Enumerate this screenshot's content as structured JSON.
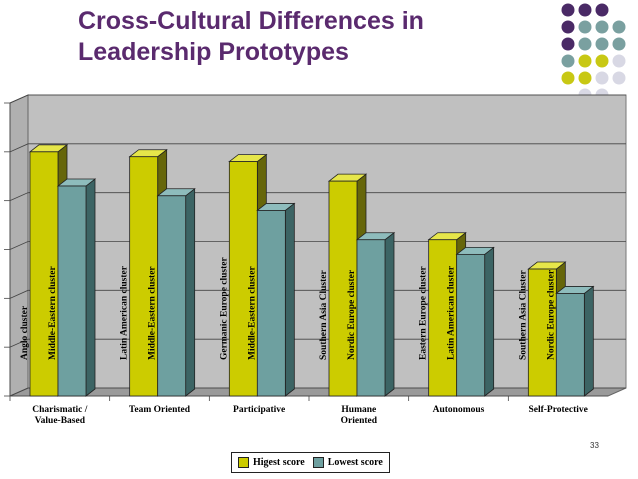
{
  "slide": {
    "title_line1": "Cross-Cultural Differences in",
    "title_line2": "Leadership Prototypes",
    "page_number": "33"
  },
  "colors": {
    "title": "#5a2a6e",
    "highest_front": "#cccc00",
    "highest_side": "#66660a",
    "highest_top": "#e6e64a",
    "lowest_front": "#6ea0a0",
    "lowest_side": "#3c6464",
    "lowest_top": "#8ebcbc",
    "dot_purple": "#4a2a66",
    "dot_teal": "#7aa0a0",
    "dot_yellow": "#c8c814",
    "dot_gray": "#d8d8e4"
  },
  "decor_dots": [
    [
      "dot_purple",
      "dot_purple",
      "dot_purple",
      ""
    ],
    [
      "dot_purple",
      "dot_teal",
      "dot_teal",
      "dot_teal"
    ],
    [
      "dot_purple",
      "dot_teal",
      "dot_teal",
      "dot_teal"
    ],
    [
      "dot_teal",
      "dot_yellow",
      "dot_yellow",
      "dot_gray"
    ],
    [
      "dot_yellow",
      "dot_yellow",
      "dot_gray",
      "dot_gray"
    ],
    [
      "",
      "dot_gray",
      "dot_gray",
      ""
    ]
  ],
  "chart_data": {
    "type": "bar",
    "style": "3d-clustered",
    "title": "",
    "xlabel": "",
    "ylabel": "",
    "ylim": [
      1,
      7
    ],
    "grid": true,
    "legend_position": "bottom",
    "categories": [
      "Charismatic / Value-Based",
      "Team Oriented",
      "Participative",
      "Humane Oriented",
      "Autonomous",
      "Self-Protective"
    ],
    "category_lines": [
      [
        "Charismatic /",
        "Value-Based"
      ],
      [
        "Team Oriented"
      ],
      [
        "Participative"
      ],
      [
        "Humane",
        "Oriented"
      ],
      [
        "Autonomous"
      ],
      [
        "Self-Protective"
      ]
    ],
    "series": [
      {
        "name": "Higest score",
        "color": "#cccc00",
        "values": [
          6.0,
          5.9,
          5.8,
          5.4,
          4.2,
          3.6
        ],
        "bar_labels": [
          "Anglo cluster",
          "Latin American cluster",
          "Germanic Europe cluster",
          "Southern Asia Cluster",
          "Eastern Europe cluster",
          "Southern Asia Cluster"
        ]
      },
      {
        "name": "Lowest score",
        "color": "#6ea0a0",
        "values": [
          5.3,
          5.1,
          4.8,
          4.2,
          3.9,
          3.1
        ],
        "bar_labels": [
          "Middle-Eastern cluster",
          "Middle-Eastern cluster",
          "Middle-Eastern cluster",
          "Nordic Europe cluster",
          "Latin American cluster",
          "Nordic Europe cluster"
        ]
      }
    ]
  }
}
